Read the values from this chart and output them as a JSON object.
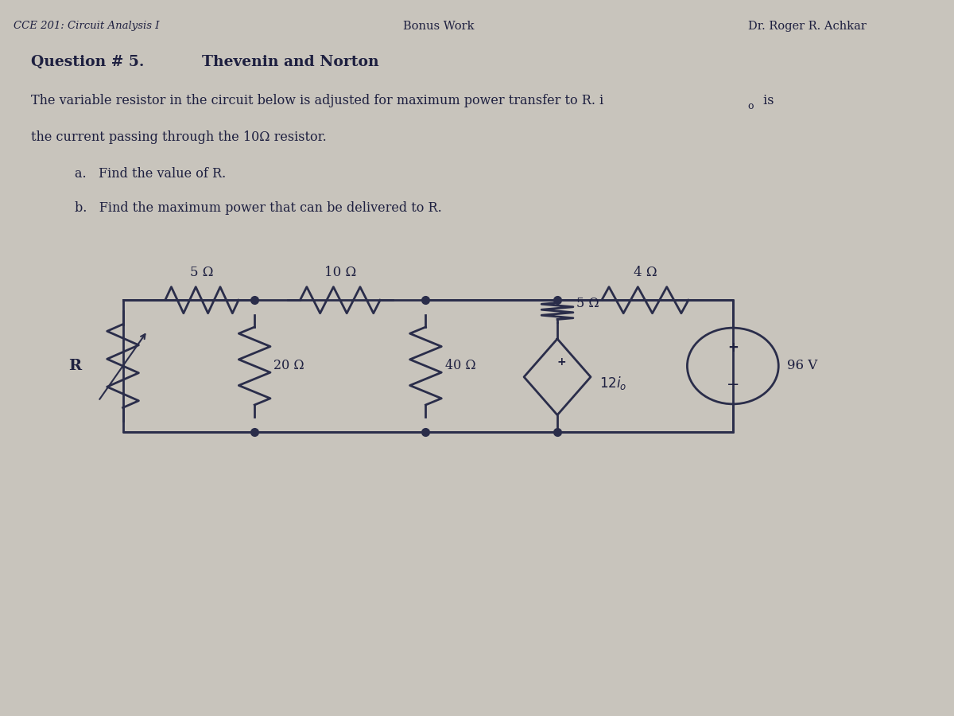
{
  "header_left": "CCE 201: Circuit Analysis I",
  "header_center": "Bonus Work",
  "header_right": "Dr. Roger R. Achkar",
  "question_title": "Question # 5.",
  "question_subtitle": "Thevenin and Norton",
  "desc1": "The variable resistor in the circuit below is adjusted for maximum power transfer to R. i",
  "desc1_sub": "o",
  "desc1_end": " is",
  "desc2": "the current passing through the 10Ω resistor.",
  "part_a": "a.   Find the value of R.",
  "part_b": "b.   Find the maximum power that can be delivered to R.",
  "bg_color": "#c8c4bc",
  "paper_color": "#eae8e2",
  "line_color": "#2a2d4a",
  "text_color": "#1e2040",
  "R_label": "R",
  "R1_val": "5 Ω",
  "R2_val": "10 Ω",
  "R3_val": "4 Ω",
  "R4_val": "5 Ω",
  "R5_val": "20 Ω",
  "R6_val": "40 Ω",
  "vs_val": "96 V",
  "cs_val": "12i",
  "cs_sub": "o"
}
